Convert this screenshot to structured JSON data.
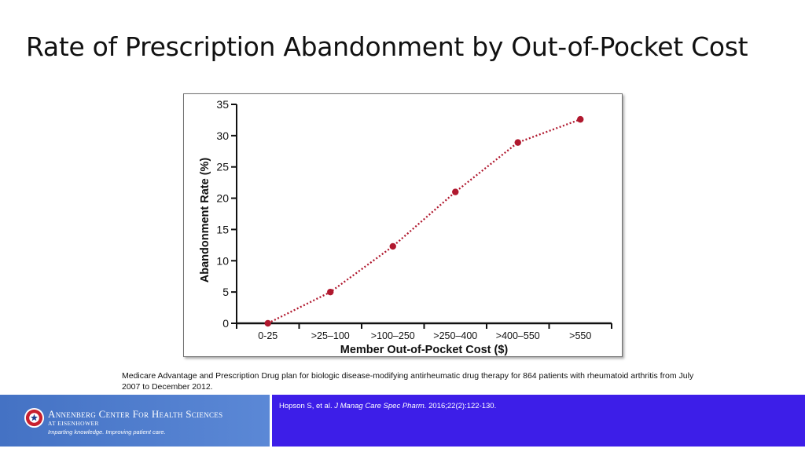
{
  "slide": {
    "title": "Rate of Prescription Abandonment by Out-of-Pocket Cost",
    "caption": "Medicare Advantage and Prescription Drug plan for biologic disease-modifying antirheumatic drug therapy for 864 patients with rheumatoid arthritis from July 2007 to December 2012."
  },
  "citation": {
    "authors": "Hopson S, et al.",
    "journal": "J Manag Care Spec Pharm.",
    "details": "2016;22(2):122-130."
  },
  "footer": {
    "org_name": "Annenberg Center For Health Sciences",
    "org_sub": "AT EISENHOWER",
    "tagline": "Imparting knowledge. Improving patient care.",
    "logo_color": "#4a78ca",
    "band_color": "#3d1ee8"
  },
  "chart_data": {
    "type": "line",
    "title": "",
    "xlabel": "Member Out-of-Pocket Cost ($)",
    "ylabel": "Abandonment Rate (%)",
    "categories": [
      "0-25",
      ">25–100",
      ">100–250",
      ">250–400",
      ">400–550",
      ">550"
    ],
    "series": [
      {
        "values": [
          0,
          5,
          12.3,
          21,
          28.9,
          32.6
        ]
      }
    ],
    "ylim": [
      0,
      35
    ],
    "yticks": [
      0,
      5,
      10,
      15,
      20,
      25,
      30,
      35
    ],
    "line_style": "dotted",
    "marker": "circle",
    "color": "#b0182e",
    "grid": false,
    "legend": "none"
  }
}
